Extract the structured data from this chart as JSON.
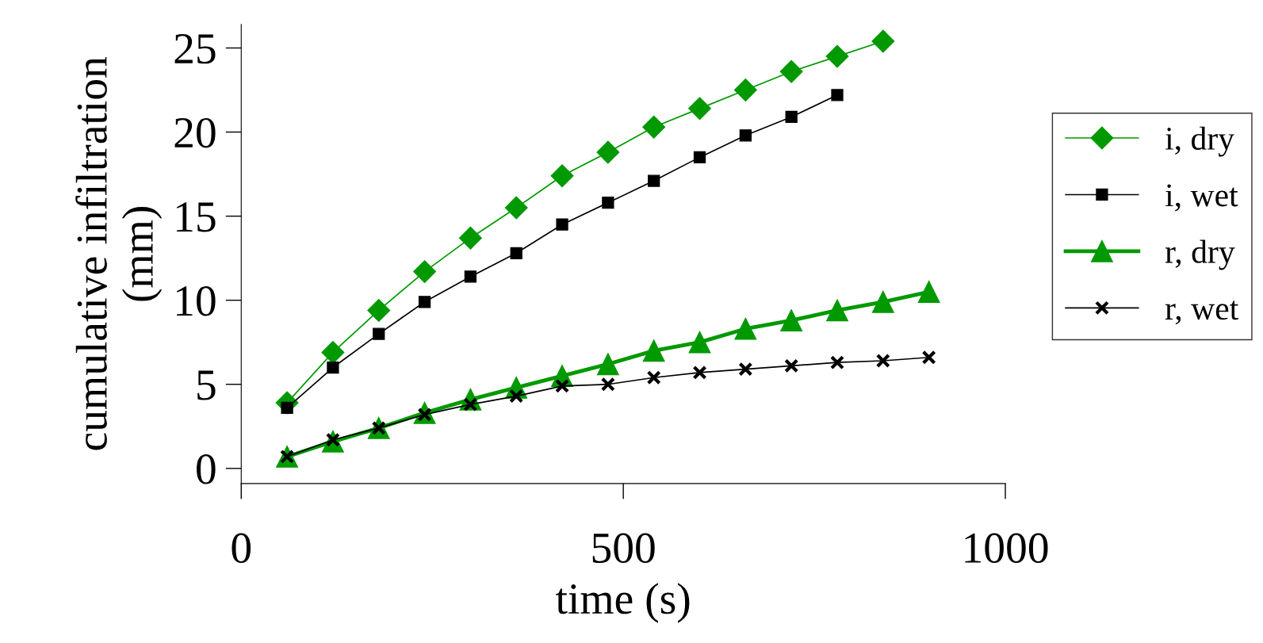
{
  "chart_data": {
    "type": "line",
    "xlabel": "time (s)",
    "ylabel": "cumulative infiltration\n(mm)",
    "xlim": [
      0,
      1000
    ],
    "xticks": [
      0,
      500,
      1000
    ],
    "ylim": [
      -0.9,
      26.4
    ],
    "yticks": [
      0,
      5,
      10,
      15,
      20,
      25
    ],
    "grid": false,
    "legend": "right",
    "series": [
      {
        "name": "i, dry",
        "color": "#009900",
        "marker": "diamond",
        "x": [
          60,
          120,
          180,
          240,
          300,
          360,
          420,
          480,
          540,
          600,
          660,
          720,
          780,
          840
        ],
        "values": [
          3.9,
          6.9,
          9.4,
          11.7,
          13.7,
          15.5,
          17.4,
          18.8,
          20.3,
          21.4,
          22.5,
          23.6,
          24.5,
          25.4
        ]
      },
      {
        "name": "i, wet",
        "color": "#000000",
        "marker": "square",
        "x": [
          60,
          120,
          180,
          240,
          300,
          360,
          420,
          480,
          540,
          600,
          660,
          720,
          780
        ],
        "values": [
          3.6,
          6.0,
          8.0,
          9.9,
          11.4,
          12.8,
          14.5,
          15.8,
          17.1,
          18.5,
          19.8,
          20.9,
          22.2
        ]
      },
      {
        "name": "r, dry",
        "color": "#009900",
        "marker": "triangle",
        "x": [
          60,
          120,
          180,
          240,
          300,
          360,
          420,
          480,
          540,
          600,
          660,
          720,
          780,
          840,
          900
        ],
        "values": [
          0.7,
          1.6,
          2.4,
          3.3,
          4.1,
          4.8,
          5.5,
          6.2,
          7.0,
          7.5,
          8.3,
          8.8,
          9.4,
          9.9,
          10.5
        ]
      },
      {
        "name": "r, wet",
        "color": "#000000",
        "marker": "cross",
        "x": [
          60,
          120,
          180,
          240,
          300,
          360,
          420,
          480,
          540,
          600,
          660,
          720,
          780,
          840,
          900
        ],
        "values": [
          0.7,
          1.7,
          2.4,
          3.2,
          3.8,
          4.3,
          4.9,
          5.0,
          5.4,
          5.7,
          5.9,
          6.1,
          6.3,
          6.4,
          6.6
        ]
      }
    ]
  }
}
